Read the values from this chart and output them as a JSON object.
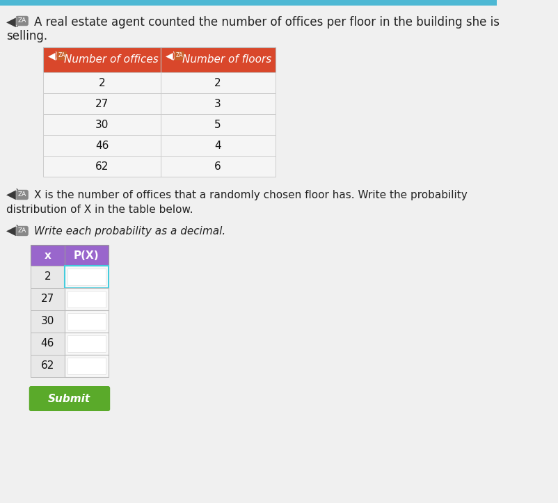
{
  "bg_color": "#f0f0f0",
  "title_text1": "A real estate agent counted the number of offices per floor in the building she is",
  "title_text2": "selling.",
  "table1_header": [
    "Number of offices",
    "Number of floors"
  ],
  "table1_header_bg": "#d9472b",
  "table1_header_color": "#ffffff",
  "table1_data": [
    [
      2,
      2
    ],
    [
      27,
      3
    ],
    [
      30,
      5
    ],
    [
      46,
      4
    ],
    [
      62,
      6
    ]
  ],
  "table1_row_bg": "#f8f8f8",
  "mid_text1": "X is the number of offices that a randomly chosen floor has. Write the probability",
  "mid_text2": "distribution of X in the table below.",
  "sub_text": "Write each probability as a decimal.",
  "table2_header": [
    "x",
    "P(X)"
  ],
  "table2_header_bg": "#9966cc",
  "table2_x_bg": "#e8e8e8",
  "table2_px_bg": "#f8f8f8",
  "table2_x_values": [
    2,
    27,
    30,
    46,
    62
  ],
  "submit_btn_color": "#5aaa2a",
  "submit_btn_text": "Submit",
  "font_size_title": 12,
  "font_size_body": 11,
  "font_size_table": 11,
  "top_bar_color": "#4db8d4",
  "top_bar_height": 8
}
